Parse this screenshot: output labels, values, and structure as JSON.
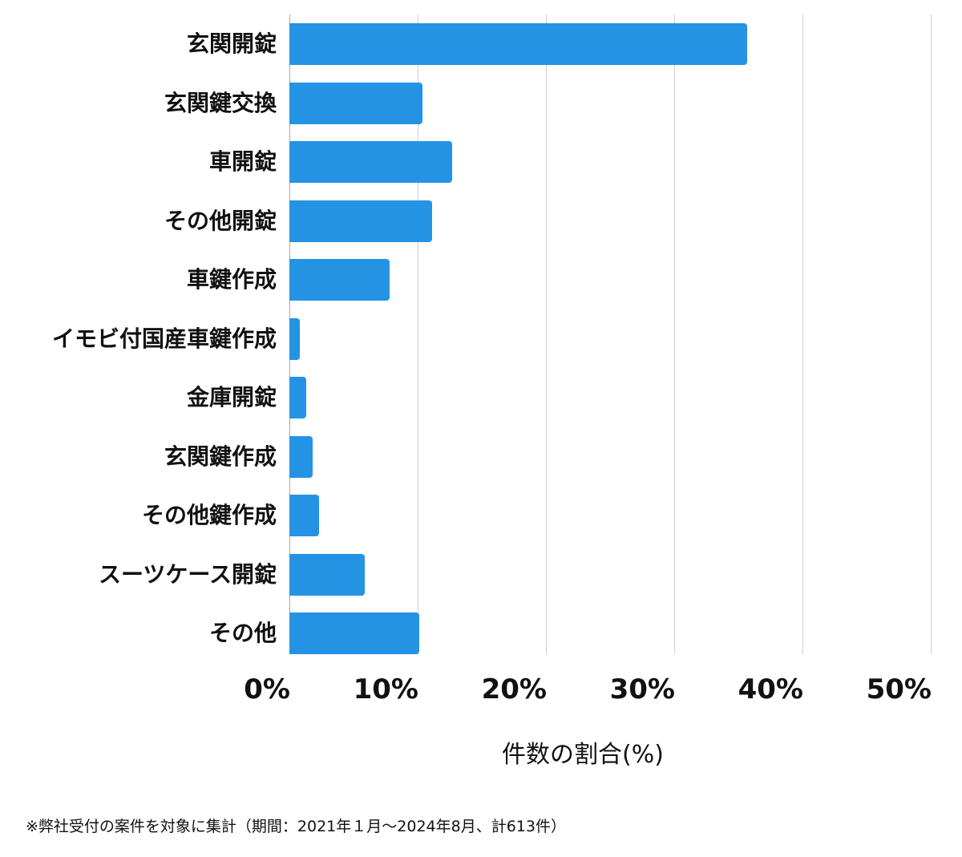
{
  "chart_data": {
    "type": "bar",
    "orientation": "horizontal",
    "title": "",
    "categories": [
      "玄関開錠",
      "玄関鍵交換",
      "車開錠",
      "その他開錠",
      "車鍵作成",
      "イモビ付国産車鍵作成",
      "金庫開錠",
      "玄関鍵作成",
      "その他鍵作成",
      "スーツケース開錠",
      "その他"
    ],
    "values": [
      35.7,
      10.4,
      12.7,
      11.1,
      7.8,
      0.8,
      1.3,
      1.8,
      2.3,
      5.9,
      10.1
    ],
    "xlabel": "件数の割合(%)",
    "ylabel": "",
    "xlim": [
      0,
      50
    ],
    "xticks": [
      "0%",
      "10%",
      "20%",
      "30%",
      "40%",
      "50%"
    ],
    "grid": true,
    "bar_color": "#2593e4"
  },
  "labels": {
    "xlabel": "件数の割合(%)",
    "footnote": "※弊社受付の案件を対象に集計（期間：2021年１月〜2024年8月、計613件）"
  }
}
